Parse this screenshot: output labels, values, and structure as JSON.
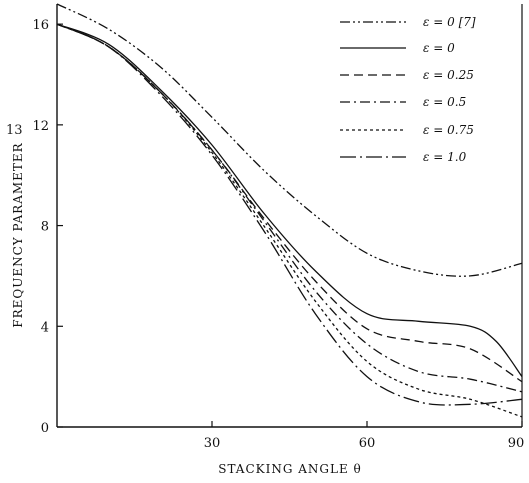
{
  "chart_data": {
    "type": "line",
    "title": "",
    "xlabel": "STACKING ANGLE  θ",
    "ylabel": "FREQUENCY PARAMETER",
    "y_prefix_mark": "13",
    "xlim": [
      0,
      90
    ],
    "ylim": [
      0,
      16.8
    ],
    "x_ticks": [
      30,
      60,
      90
    ],
    "y_ticks": [
      0,
      4,
      8,
      12,
      16
    ],
    "grid": false,
    "legend_position": "top-right",
    "series": [
      {
        "name": "ε = 0  [7]",
        "style": "dash-dot-dot",
        "x": [
          0,
          10,
          20,
          30,
          40,
          50,
          60,
          70,
          80,
          90
        ],
        "y": [
          16.8,
          15.8,
          14.3,
          12.3,
          10.2,
          8.4,
          6.9,
          6.2,
          6.0,
          6.5
        ]
      },
      {
        "name": "ε = 0",
        "style": "solid",
        "x": [
          0,
          10,
          20,
          30,
          40,
          50,
          60,
          70,
          80,
          85,
          90
        ],
        "y": [
          16.0,
          15.2,
          13.4,
          11.2,
          8.5,
          6.2,
          4.5,
          4.2,
          4.0,
          3.4,
          2.0
        ]
      },
      {
        "name": "ε = 0.25",
        "style": "dashed",
        "x": [
          0,
          10,
          20,
          30,
          40,
          50,
          60,
          70,
          80,
          90
        ],
        "y": [
          16.0,
          15.1,
          13.3,
          11.0,
          8.3,
          5.8,
          3.9,
          3.4,
          3.1,
          1.8
        ]
      },
      {
        "name": "ε = 0.5",
        "style": "dash-dot",
        "x": [
          0,
          10,
          20,
          30,
          40,
          50,
          60,
          70,
          80,
          90
        ],
        "y": [
          16.0,
          15.1,
          13.3,
          11.0,
          8.2,
          5.4,
          3.3,
          2.2,
          1.9,
          1.4
        ]
      },
      {
        "name": "ε = 0.75",
        "style": "dotted",
        "x": [
          0,
          10,
          20,
          30,
          40,
          50,
          60,
          70,
          80,
          90
        ],
        "y": [
          16.0,
          15.1,
          13.3,
          10.9,
          8.0,
          5.0,
          2.6,
          1.5,
          1.1,
          0.4
        ]
      },
      {
        "name": "ε = 1.0",
        "style": "long-dash-dot",
        "x": [
          0,
          10,
          20,
          30,
          40,
          50,
          60,
          70,
          80,
          90
        ],
        "y": [
          16.0,
          15.1,
          13.2,
          10.8,
          7.8,
          4.5,
          2.0,
          1.0,
          0.9,
          1.1
        ]
      }
    ]
  }
}
